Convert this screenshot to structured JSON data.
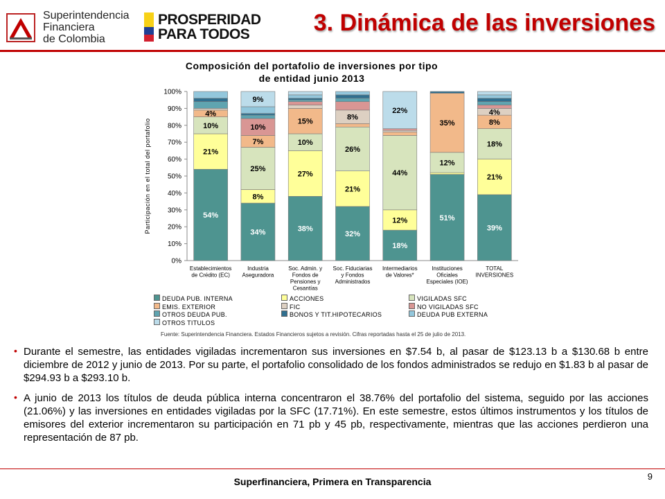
{
  "header": {
    "org_name_lines": [
      "Superintendencia",
      "Financiera",
      "de Colombia"
    ],
    "slogan_lines": [
      "PROSPERIDAD",
      "PARA TODOS"
    ],
    "title": "3. Dinámica de las inversiones"
  },
  "colors": {
    "accent": "#c00000",
    "flag_yellow": "#f7d117",
    "flag_blue": "#1f3f95",
    "flag_red": "#d2202f"
  },
  "chart_data": {
    "type": "bar",
    "stacked": true,
    "title_lines": [
      "Composición del portafolio de inversiones por tipo",
      "de entidad junio 2013"
    ],
    "ylabel": "Participación en el total del portafolio",
    "ylim": [
      0,
      100
    ],
    "yticks": [
      "0%",
      "10%",
      "20%",
      "30%",
      "40%",
      "50%",
      "60%",
      "70%",
      "80%",
      "90%",
      "100%"
    ],
    "categories": [
      [
        "Establecimientos",
        "de Crédito (EC)"
      ],
      [
        "Industria",
        "Aseguradora"
      ],
      [
        "Soc. Admin. y",
        "Fondos de",
        "Pensiones y",
        "Cesantías"
      ],
      [
        "Soc. Fiduciarias",
        "y Fondos",
        "Administrados"
      ],
      [
        "Intermediarios",
        "de Valores*"
      ],
      [
        "Instituciones",
        "Oficiales",
        "Especiales (IOE)"
      ],
      [
        "TOTAL",
        "INVERSIONES"
      ]
    ],
    "series": [
      {
        "name": "DEUDA PUB. INTERNA",
        "color": "#4e9490",
        "values": [
          54,
          34,
          38,
          32,
          18,
          51,
          39
        ],
        "labels": [
          "54%",
          "34%",
          "38%",
          "32%",
          "18%",
          "51%",
          "39%"
        ]
      },
      {
        "name": "ACCIONES",
        "color": "#ffff99",
        "values": [
          21,
          8,
          27,
          21,
          12,
          1,
          21
        ],
        "labels": [
          "21%",
          "8%",
          "27%",
          "21%",
          "12%",
          "",
          "21%"
        ]
      },
      {
        "name": "VIGILADAS SFC",
        "color": "#d7e4bd",
        "values": [
          10,
          25,
          10,
          26,
          44,
          12,
          18
        ],
        "labels": [
          "10%",
          "25%",
          "10%",
          "26%",
          "44%",
          "12%",
          "18%"
        ]
      },
      {
        "name": "EMIS. EXTERIOR",
        "color": "#f2b98a",
        "values": [
          4,
          7,
          15,
          2,
          2,
          35,
          8
        ],
        "labels": [
          "4%",
          "7%",
          "15%",
          "",
          "",
          "35%",
          "8%"
        ]
      },
      {
        "name": "FIC",
        "color": "#ddd0c2",
        "values": [
          1,
          0,
          2,
          8,
          1,
          0,
          4
        ],
        "labels": [
          "",
          "",
          "",
          "8%",
          "",
          "",
          "4%"
        ]
      },
      {
        "name": "NO VIGILADAS SFC",
        "color": "#d99694",
        "values": [
          0,
          10,
          2,
          5,
          1,
          0,
          2
        ],
        "labels": [
          "",
          "10%",
          "",
          "",
          "",
          "",
          ""
        ]
      },
      {
        "name": "OTROS DEUDA PUB.",
        "color": "#5fa4b0",
        "values": [
          4,
          2,
          1,
          2,
          0,
          0,
          2
        ],
        "labels": [
          "",
          "",
          "",
          "",
          "",
          "",
          ""
        ]
      },
      {
        "name": "BONOS Y TIT.HIPOTECARIOS",
        "color": "#2f6f8f",
        "values": [
          2,
          1,
          1,
          2,
          0,
          1,
          2
        ],
        "labels": [
          "",
          "",
          "",
          "",
          "",
          "",
          ""
        ]
      },
      {
        "name": "DEUDA PUB EXTERNA",
        "color": "#93c7dc",
        "values": [
          4,
          4,
          2,
          2,
          0,
          0,
          2
        ],
        "labels": [
          "",
          "",
          "",
          "",
          "",
          "",
          ""
        ]
      },
      {
        "name": "OTROS TITULOS",
        "color": "#bcdcea",
        "values": [
          0,
          9,
          2,
          0,
          22,
          0,
          2
        ],
        "labels": [
          "",
          "9%",
          "",
          "",
          "22%",
          "",
          ""
        ]
      }
    ],
    "legend_position": "bottom",
    "grid": false
  },
  "source_text": "Fuente: Superintendencia Financiera. Estados Financieros sujetos a revisión. Cifras reportadas hasta el 25 de julio de 2013.",
  "bullets": [
    "Durante el semestre, las entidades vigiladas incrementaron sus inversiones en $7.54 b, al pasar de $123.13 b a $130.68 b entre diciembre de 2012 y junio de 2013. Por su parte, el portafolio consolidado de los fondos administrados se redujo en $1.83 b al pasar de $294.93 b a $293.10 b.",
    "A junio de 2013 los títulos de deuda pública interna concentraron el 38.76% del portafolio del sistema, seguido por las acciones (21.06%) y las inversiones en entidades vigiladas por la SFC (17.71%). En este semestre, estos últimos instrumentos y los títulos de emisores del exterior incrementaron su participación en 71 pb y 45 pb, respectivamente, mientras que las acciones perdieron una representación de 87 pb."
  ],
  "footer": {
    "text": "Superfinanciera, Primera en Transparencia",
    "page_number": "9"
  }
}
